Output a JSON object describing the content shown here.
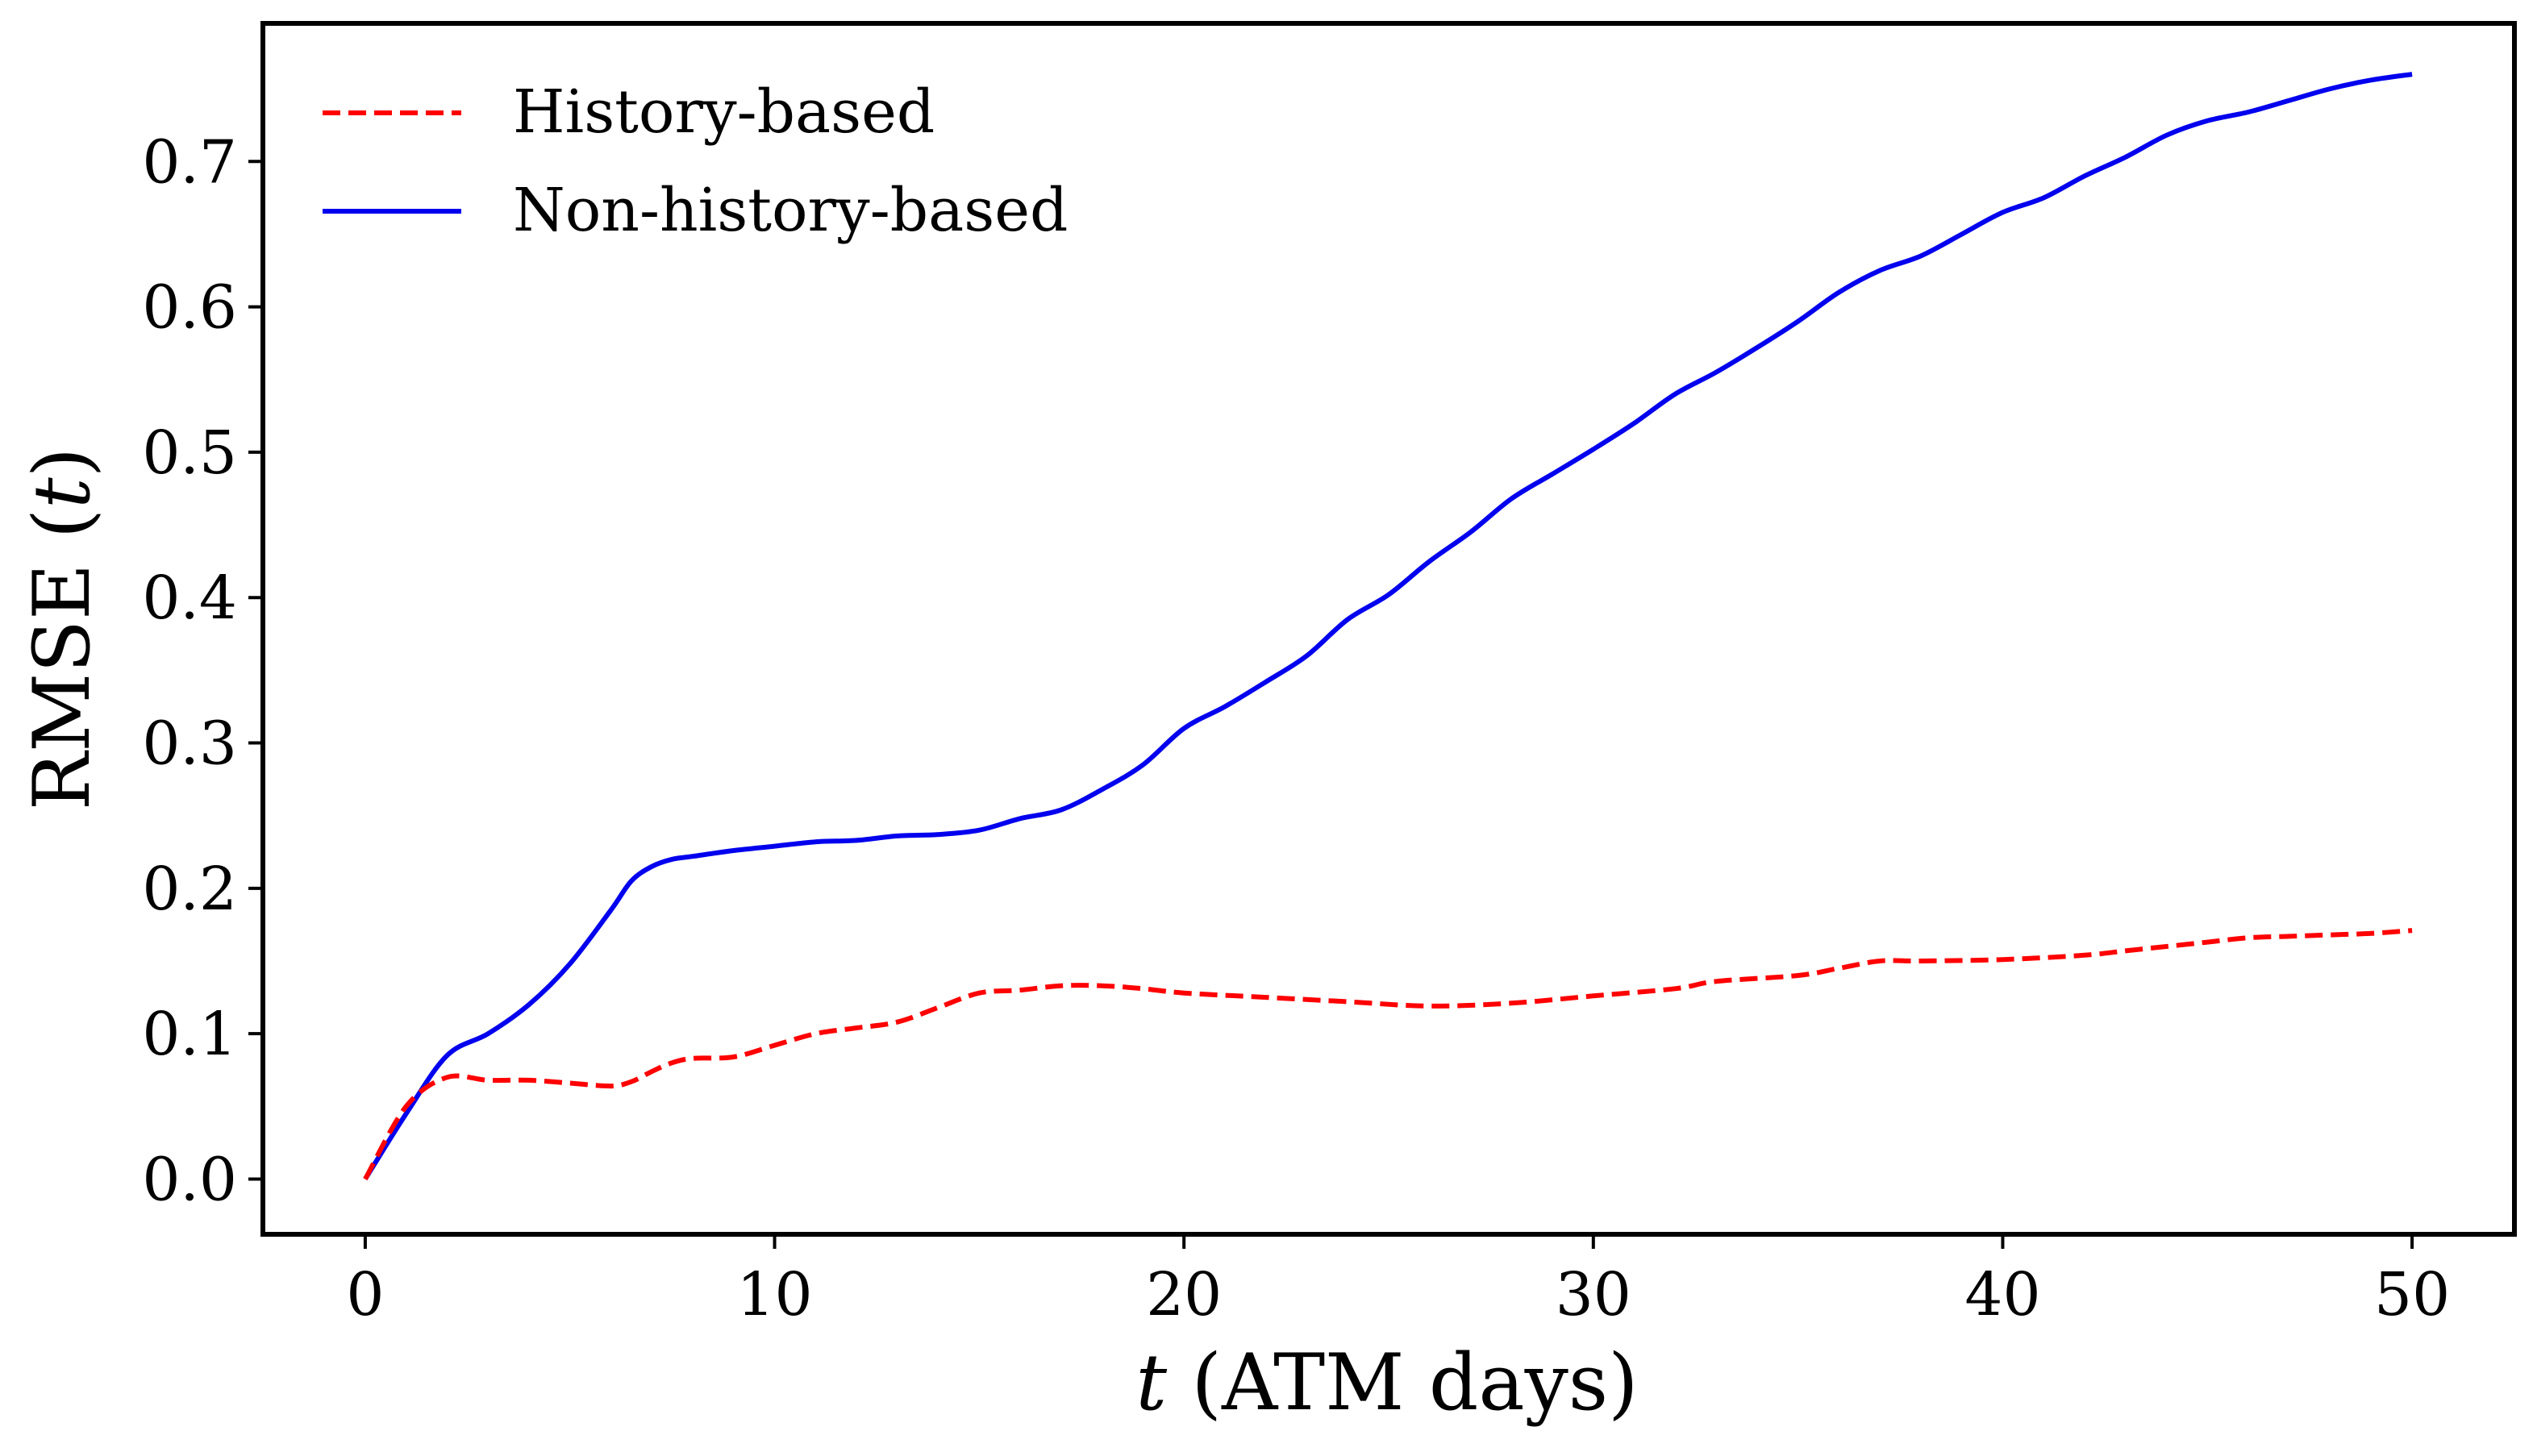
{
  "chart_data": {
    "type": "line",
    "title": "",
    "xlabel_var": "t",
    "xlabel_rest": " (ATM days)",
    "ylabel_main": "RMSE (",
    "ylabel_var": "t",
    "ylabel_close": ")",
    "xlim": [
      -2.5,
      52.5
    ],
    "ylim": [
      -0.038,
      0.795
    ],
    "xticks": [
      0,
      10,
      20,
      30,
      40,
      50
    ],
    "xtick_labels": [
      "0",
      "10",
      "20",
      "30",
      "40",
      "50"
    ],
    "yticks": [
      0.0,
      0.1,
      0.2,
      0.3,
      0.4,
      0.5,
      0.6,
      0.7
    ],
    "ytick_labels": [
      "0.0",
      "0.1",
      "0.2",
      "0.3",
      "0.4",
      "0.5",
      "0.6",
      "0.7"
    ],
    "legend_position": "top-left",
    "grid": false,
    "series": [
      {
        "name": "History-based",
        "color": "#ff0000",
        "style": "dashed",
        "x": [
          0,
          1,
          2,
          3,
          4,
          5,
          6,
          6.5,
          7,
          7.5,
          8,
          9,
          10,
          11,
          12,
          13,
          14,
          15,
          16,
          17,
          18,
          19,
          20,
          22,
          24,
          26,
          28,
          30,
          32,
          33,
          35,
          36,
          37,
          38,
          40,
          42,
          43,
          44,
          45,
          46,
          47,
          48,
          49,
          50
        ],
        "values": [
          0.0,
          0.05,
          0.07,
          0.068,
          0.068,
          0.066,
          0.064,
          0.067,
          0.074,
          0.08,
          0.083,
          0.084,
          0.092,
          0.1,
          0.104,
          0.108,
          0.118,
          0.128,
          0.13,
          0.133,
          0.133,
          0.131,
          0.128,
          0.125,
          0.122,
          0.119,
          0.121,
          0.126,
          0.131,
          0.136,
          0.14,
          0.145,
          0.15,
          0.15,
          0.151,
          0.154,
          0.157,
          0.16,
          0.163,
          0.166,
          0.167,
          0.168,
          0.169,
          0.171
        ]
      },
      {
        "name": "Non-history-based",
        "color": "#0000ee",
        "style": "solid",
        "x": [
          0,
          1,
          2,
          3,
          4,
          5,
          6,
          6.5,
          7,
          7.5,
          8,
          9,
          10,
          11,
          12,
          13,
          14,
          15,
          16,
          17,
          18,
          19,
          20,
          21,
          22,
          23,
          24,
          25,
          26,
          27,
          28,
          29,
          30,
          31,
          32,
          33,
          34,
          35,
          36,
          37,
          38,
          39,
          40,
          41,
          42,
          43,
          44,
          45,
          46,
          47,
          48,
          49,
          50
        ],
        "values": [
          0.0,
          0.045,
          0.085,
          0.1,
          0.12,
          0.148,
          0.185,
          0.205,
          0.215,
          0.22,
          0.222,
          0.226,
          0.229,
          0.232,
          0.233,
          0.236,
          0.237,
          0.24,
          0.248,
          0.254,
          0.268,
          0.285,
          0.31,
          0.325,
          0.342,
          0.36,
          0.385,
          0.402,
          0.425,
          0.445,
          0.468,
          0.485,
          0.502,
          0.52,
          0.54,
          0.555,
          0.572,
          0.59,
          0.61,
          0.625,
          0.635,
          0.65,
          0.665,
          0.675,
          0.69,
          0.703,
          0.718,
          0.728,
          0.734,
          0.742,
          0.75,
          0.756,
          0.76
        ]
      }
    ]
  }
}
